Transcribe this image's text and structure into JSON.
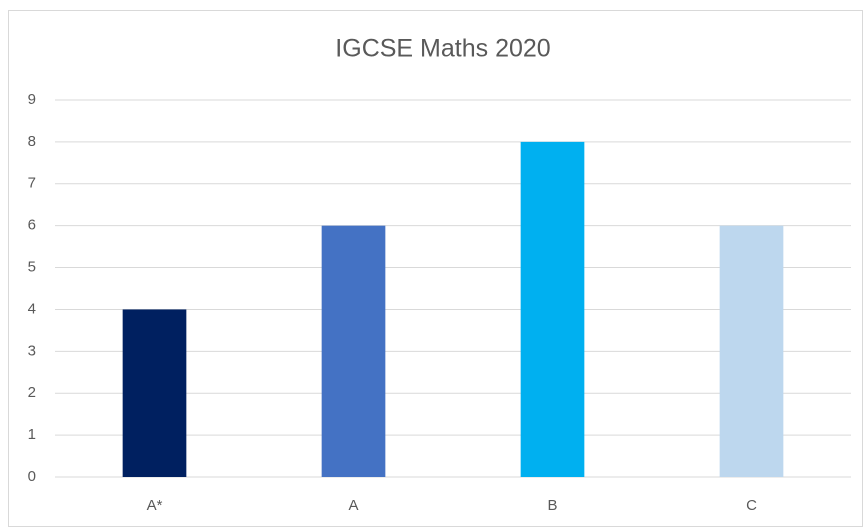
{
  "chart_data": {
    "type": "bar",
    "title": "IGCSE Maths 2020",
    "categories": [
      "A*",
      "A",
      "B",
      "C"
    ],
    "values": [
      4,
      6,
      8,
      6
    ],
    "colors": [
      "#002060",
      "#4472c4",
      "#00b0f0",
      "#bdd7ee"
    ],
    "ylim": [
      0,
      9
    ],
    "yticks": [
      0,
      1,
      2,
      3,
      4,
      5,
      6,
      7,
      8,
      9
    ],
    "grid": true
  }
}
